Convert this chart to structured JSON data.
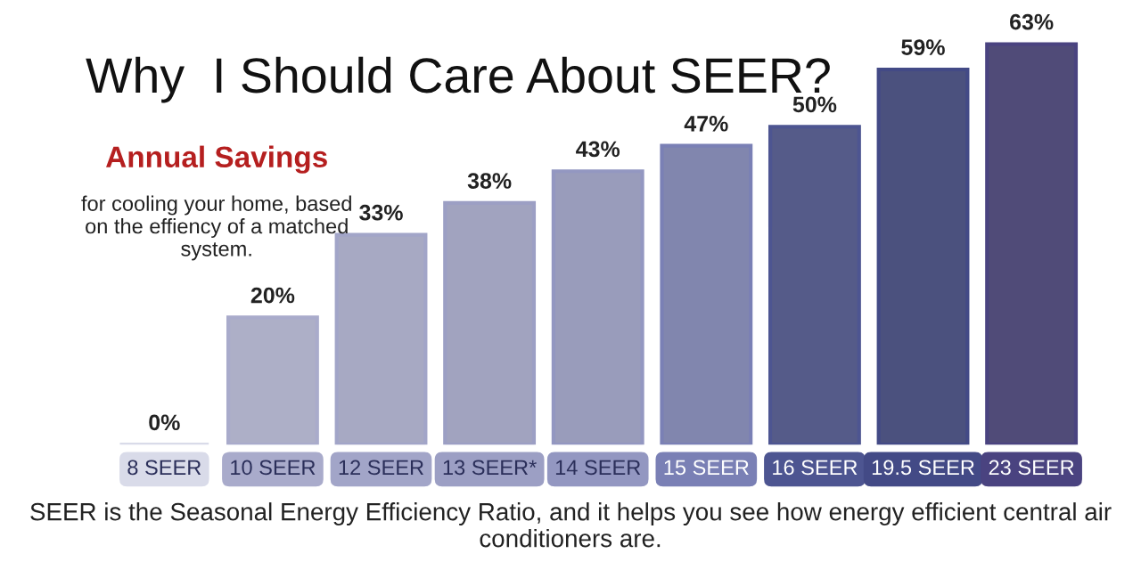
{
  "chart_data": {
    "type": "bar",
    "title": "Why  I Should Care About SEER?",
    "categories": [
      "8 SEER",
      "10 SEER",
      "12 SEER",
      "13 SEER*",
      "14 SEER",
      "15 SEER",
      "16 SEER",
      "19.5 SEER",
      "23 SEER"
    ],
    "values": [
      0,
      20,
      33,
      38,
      43,
      47,
      50,
      59,
      63
    ],
    "value_labels": [
      "0%",
      "20%",
      "33%",
      "38%",
      "43%",
      "47%",
      "50%",
      "59%",
      "63%"
    ],
    "colors": [
      "#d9dbe9",
      "#a9abcb",
      "#a2a5c8",
      "#9c9fc4",
      "#9397c1",
      "#7a80b5",
      "#4d5591",
      "#434a86",
      "#4a4380"
    ],
    "annotations": [
      "Annual Savings",
      "for cooling your home, based on the effiency of a matched system.",
      "SEER is the Seasonal Energy Efficiency Ratio, and it helps you see how energy efficient central air conditioners are."
    ],
    "grid": false,
    "legend": false
  }
}
